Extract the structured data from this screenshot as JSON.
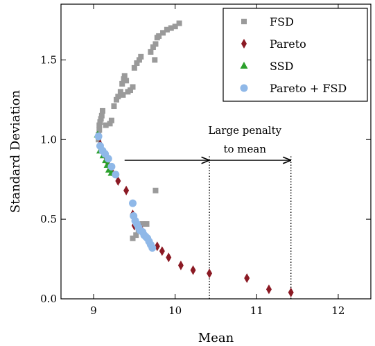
{
  "chart_data": {
    "type": "scatter",
    "xlabel": "Mean",
    "ylabel": "Standard Deviation",
    "xlim": [
      8.6,
      12.4
    ],
    "ylim": [
      0.0,
      1.85
    ],
    "xticks": [
      9,
      10,
      11,
      12
    ],
    "yticks": [
      0.0,
      0.5,
      1.0,
      1.5
    ],
    "xtick_labels": [
      "9",
      "10",
      "11",
      "12"
    ],
    "ytick_labels": [
      "0.0",
      "0.5",
      "1.0",
      "1.5"
    ],
    "grid": false,
    "legend_position": "top-right",
    "annotations": [
      {
        "text_lines": [
          "Large penalty",
          "to mean"
        ],
        "arrows": [
          {
            "from": [
              9.38,
              0.87
            ],
            "to": [
              10.42,
              0.87
            ]
          },
          {
            "from": [
              10.42,
              0.87
            ],
            "to": [
              11.42,
              0.87
            ]
          }
        ],
        "vlines": [
          {
            "x": 10.42,
            "y0": 0.0,
            "y1": 0.9
          },
          {
            "x": 11.42,
            "y0": 0.0,
            "y1": 0.9
          }
        ]
      }
    ],
    "series": [
      {
        "name": "FSD",
        "marker": "square",
        "color": "#9a9a9a",
        "points": [
          [
            9.06,
            1.0
          ],
          [
            9.06,
            1.03
          ],
          [
            9.07,
            1.06
          ],
          [
            9.07,
            1.09
          ],
          [
            9.08,
            1.11
          ],
          [
            9.09,
            1.13
          ],
          [
            9.1,
            1.15
          ],
          [
            9.11,
            1.18
          ],
          [
            9.15,
            1.09
          ],
          [
            9.2,
            1.1
          ],
          [
            9.22,
            1.12
          ],
          [
            9.25,
            1.21
          ],
          [
            9.28,
            1.25
          ],
          [
            9.3,
            1.27
          ],
          [
            9.33,
            1.3
          ],
          [
            9.35,
            1.35
          ],
          [
            9.36,
            1.28
          ],
          [
            9.37,
            1.38
          ],
          [
            9.38,
            1.4
          ],
          [
            9.4,
            1.37
          ],
          [
            9.42,
            1.3
          ],
          [
            9.45,
            1.31
          ],
          [
            9.48,
            1.33
          ],
          [
            9.5,
            1.45
          ],
          [
            9.53,
            1.48
          ],
          [
            9.56,
            1.5
          ],
          [
            9.58,
            1.52
          ],
          [
            9.7,
            1.55
          ],
          [
            9.73,
            1.58
          ],
          [
            9.76,
            1.6
          ],
          [
            9.78,
            1.64
          ],
          [
            9.8,
            1.65
          ],
          [
            9.85,
            1.67
          ],
          [
            9.9,
            1.69
          ],
          [
            9.95,
            1.7
          ],
          [
            10.0,
            1.71
          ],
          [
            10.05,
            1.73
          ],
          [
            9.75,
            1.5
          ],
          [
            9.76,
            0.68
          ],
          [
            9.65,
            0.47
          ],
          [
            9.6,
            0.47
          ],
          [
            9.55,
            0.43
          ],
          [
            9.52,
            0.4
          ],
          [
            9.48,
            0.38
          ]
        ]
      },
      {
        "name": "Pareto",
        "marker": "diamond",
        "color": "#8b1a24",
        "points": [
          [
            9.08,
            0.97
          ],
          [
            9.1,
            0.94
          ],
          [
            9.14,
            0.9
          ],
          [
            9.17,
            0.86
          ],
          [
            9.22,
            0.8
          ],
          [
            9.3,
            0.74
          ],
          [
            9.4,
            0.68
          ],
          [
            9.48,
            0.53
          ],
          [
            9.5,
            0.46
          ],
          [
            9.58,
            0.44
          ],
          [
            9.68,
            0.37
          ],
          [
            9.78,
            0.33
          ],
          [
            9.84,
            0.3
          ],
          [
            9.92,
            0.26
          ],
          [
            10.07,
            0.21
          ],
          [
            10.22,
            0.18
          ],
          [
            10.42,
            0.16
          ],
          [
            10.88,
            0.13
          ],
          [
            11.15,
            0.06
          ],
          [
            11.42,
            0.04
          ]
        ]
      },
      {
        "name": "SSD",
        "marker": "triangle",
        "color": "#2ca02c",
        "points": [
          [
            9.05,
            1.03
          ],
          [
            9.08,
            0.93
          ],
          [
            9.12,
            0.9
          ],
          [
            9.15,
            0.87
          ],
          [
            9.17,
            0.84
          ],
          [
            9.19,
            0.81
          ],
          [
            9.22,
            0.79
          ]
        ]
      },
      {
        "name": "Pareto + FSD",
        "marker": "circle",
        "color": "#8fb8e8",
        "points": [
          [
            9.06,
            1.02
          ],
          [
            9.08,
            0.96
          ],
          [
            9.11,
            0.93
          ],
          [
            9.14,
            0.91
          ],
          [
            9.18,
            0.88
          ],
          [
            9.22,
            0.83
          ],
          [
            9.27,
            0.78
          ],
          [
            9.48,
            0.6
          ],
          [
            9.49,
            0.52
          ],
          [
            9.51,
            0.49
          ],
          [
            9.53,
            0.47
          ],
          [
            9.55,
            0.45
          ],
          [
            9.57,
            0.43
          ],
          [
            9.6,
            0.42
          ],
          [
            9.62,
            0.4
          ],
          [
            9.64,
            0.39
          ],
          [
            9.66,
            0.38
          ],
          [
            9.68,
            0.36
          ],
          [
            9.7,
            0.34
          ],
          [
            9.72,
            0.32
          ]
        ]
      }
    ]
  },
  "annotation": {
    "line1": "Large penalty",
    "line2": "to mean"
  }
}
